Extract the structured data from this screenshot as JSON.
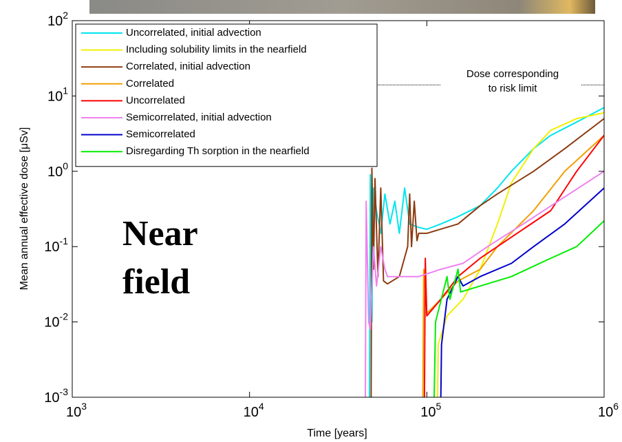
{
  "chart_data": {
    "type": "line",
    "xlabel": "Time [years]",
    "ylabel": "Mean annual effective dose [μSv]",
    "xscale": "log",
    "yscale": "log",
    "xlim": [
      1000,
      1000000
    ],
    "ylim": [
      0.001,
      100
    ],
    "xticks": [
      {
        "value": 1000,
        "label": "10",
        "sup": "3"
      },
      {
        "value": 10000,
        "label": "10",
        "sup": "4"
      },
      {
        "value": 100000,
        "label": "10",
        "sup": "5"
      },
      {
        "value": 1000000,
        "label": "10",
        "sup": "6"
      }
    ],
    "yticks": [
      {
        "value": 0.001,
        "label": "10",
        "sup": "-3"
      },
      {
        "value": 0.01,
        "label": "10",
        "sup": "-2"
      },
      {
        "value": 0.1,
        "label": "10",
        "sup": "-1"
      },
      {
        "value": 1,
        "label": "10",
        "sup": "0"
      },
      {
        "value": 10,
        "label": "10",
        "sup": "1"
      },
      {
        "value": 100,
        "label": "10",
        "sup": "2"
      }
    ],
    "legend": "upper left",
    "annotations": [
      "Near",
      "field"
    ],
    "risk_limit": {
      "value": 14,
      "label": [
        "Dose corresponding",
        "to risk limit"
      ]
    },
    "series": [
      {
        "name": "Uncorrelated, initial advection",
        "color": "#00e5ee",
        "x": [
          47500,
          48000,
          49000,
          50000,
          52000,
          55000,
          58000,
          62000,
          66000,
          70000,
          75000,
          80000,
          90000,
          100000,
          120000,
          150000,
          200000,
          250000,
          300000,
          400000,
          500000,
          700000,
          1000000
        ],
        "values": [
          0.001,
          0.9,
          0.01,
          0.6,
          0.3,
          0.15,
          0.5,
          0.2,
          0.4,
          0.15,
          0.6,
          0.2,
          0.18,
          0.17,
          0.2,
          0.25,
          0.35,
          0.6,
          1.0,
          2,
          3,
          4.5,
          7
        ]
      },
      {
        "name": "Including solubility limits in the nearfield",
        "color": "#f0f000",
        "x": [
          115000,
          116000,
          130000,
          160000,
          200000,
          250000,
          300000,
          400000,
          500000,
          700000,
          1000000
        ],
        "values": [
          0.001,
          0.005,
          0.012,
          0.02,
          0.05,
          0.2,
          0.7,
          2,
          3.5,
          5,
          6
        ]
      },
      {
        "name": "Correlated, initial advection",
        "color": "#8b3a0f",
        "x": [
          48500,
          49000,
          50000,
          51000,
          53000,
          55000,
          57000,
          60000,
          70000,
          78000,
          80000,
          82000,
          85000,
          88000,
          90000,
          100000,
          150000,
          200000,
          250000,
          400000,
          600000,
          1000000
        ],
        "values": [
          0.001,
          1.1,
          0.05,
          0.8,
          0.04,
          0.6,
          0.035,
          0.032,
          0.04,
          0.1,
          0.5,
          0.1,
          0.4,
          0.12,
          0.15,
          0.15,
          0.2,
          0.35,
          0.5,
          1,
          2,
          5
        ]
      },
      {
        "name": "Correlated",
        "color": "#f0a000",
        "x": [
          95000,
          96000,
          100000,
          120000,
          150000,
          200000,
          250000,
          400000,
          600000,
          1000000
        ],
        "values": [
          0.001,
          0.05,
          0.013,
          0.02,
          0.035,
          0.05,
          0.1,
          0.3,
          1,
          3
        ]
      },
      {
        "name": "Uncorrelated",
        "color": "#ff0000",
        "x": [
          97000,
          98000,
          100000,
          120000,
          150000,
          200000,
          250000,
          500000,
          700000,
          1000000
        ],
        "values": [
          0.001,
          0.07,
          0.012,
          0.02,
          0.04,
          0.07,
          0.1,
          0.3,
          1,
          3
        ]
      },
      {
        "name": "Semicorrelated, initial advection",
        "color": "#ee82ee",
        "x": [
          45000,
          45500,
          47000,
          48000,
          50000,
          52000,
          55000,
          58000,
          60000,
          90000,
          120000,
          160000,
          220000,
          350000,
          550000,
          1000000
        ],
        "values": [
          0.001,
          0.4,
          0.01,
          0.008,
          0.1,
          0.03,
          0.1,
          0.05,
          0.04,
          0.04,
          0.05,
          0.06,
          0.1,
          0.2,
          0.4,
          1
        ]
      },
      {
        "name": "Semicorrelated",
        "color": "#0000cc",
        "x": [
          120000,
          121000,
          130000,
          150000,
          160000,
          200000,
          300000,
          400000,
          600000,
          1000000
        ],
        "values": [
          0.001,
          0.005,
          0.02,
          0.04,
          0.03,
          0.04,
          0.06,
          0.1,
          0.2,
          0.6
        ]
      },
      {
        "name": "Disregarding Th sorption in the nearfield",
        "color": "#00ee00",
        "x": [
          110000,
          112000,
          130000,
          135000,
          150000,
          155000,
          200000,
          300000,
          500000,
          700000,
          1000000
        ],
        "values": [
          0.001,
          0.01,
          0.04,
          0.02,
          0.05,
          0.025,
          0.03,
          0.04,
          0.07,
          0.1,
          0.22
        ]
      }
    ]
  }
}
